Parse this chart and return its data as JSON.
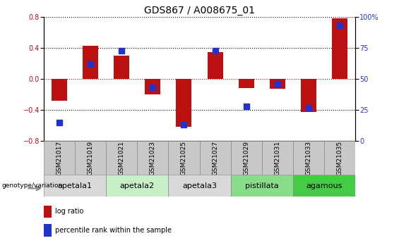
{
  "title": "GDS867 / A008675_01",
  "samples": [
    "GSM21017",
    "GSM21019",
    "GSM21021",
    "GSM21023",
    "GSM21025",
    "GSM21027",
    "GSM21029",
    "GSM21031",
    "GSM21033",
    "GSM21035"
  ],
  "log_ratios": [
    -0.28,
    0.43,
    0.3,
    -0.2,
    -0.62,
    0.35,
    -0.12,
    -0.13,
    -0.43,
    0.78
  ],
  "percentile_ranks": [
    15,
    62,
    73,
    43,
    13,
    73,
    28,
    46,
    27,
    93
  ],
  "groups": [
    {
      "label": "apetala1",
      "indices": [
        0,
        1
      ],
      "color": "#d9d9d9"
    },
    {
      "label": "apetala2",
      "indices": [
        2,
        3
      ],
      "color": "#c8f0c8"
    },
    {
      "label": "apetala3",
      "indices": [
        4,
        5
      ],
      "color": "#d9d9d9"
    },
    {
      "label": "pistillata",
      "indices": [
        6,
        7
      ],
      "color": "#88dd88"
    },
    {
      "label": "agamous",
      "indices": [
        8,
        9
      ],
      "color": "#44cc44"
    }
  ],
  "ylim_left": [
    -0.8,
    0.8
  ],
  "ylim_right": [
    0,
    100
  ],
  "yticks_left": [
    -0.8,
    -0.4,
    0.0,
    0.4,
    0.8
  ],
  "yticks_right": [
    0,
    25,
    50,
    75,
    100
  ],
  "bar_color": "#bb1111",
  "dot_color": "#2233cc",
  "bar_width": 0.5,
  "dot_size": 28,
  "legend_bar_label": "log ratio",
  "legend_dot_label": "percentile rank within the sample",
  "genotype_label": "genotype/variation",
  "title_fontsize": 10,
  "tick_fontsize": 7,
  "sample_fontsize": 6.5,
  "group_fontsize": 8,
  "legend_fontsize": 7
}
